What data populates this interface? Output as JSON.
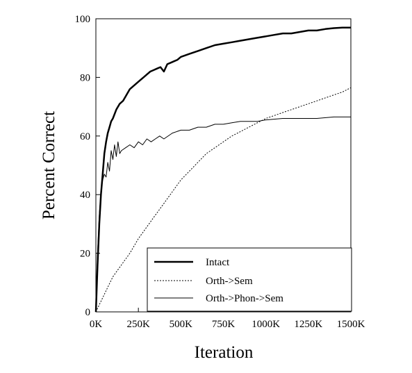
{
  "chart_data": {
    "type": "line",
    "title": "",
    "xlabel": "Iteration",
    "ylabel": "Percent Correct",
    "xlim": [
      0,
      1500000
    ],
    "ylim": [
      0,
      100
    ],
    "x_ticks": [
      {
        "value": 0,
        "label": "0K"
      },
      {
        "value": 250000,
        "label": "250K"
      },
      {
        "value": 500000,
        "label": "500K"
      },
      {
        "value": 750000,
        "label": "750K"
      },
      {
        "value": 1000000,
        "label": "1000K"
      },
      {
        "value": 1250000,
        "label": "1250K"
      },
      {
        "value": 1500000,
        "label": "1500K"
      }
    ],
    "y_ticks": [
      {
        "value": 0,
        "label": "0"
      },
      {
        "value": 20,
        "label": "20"
      },
      {
        "value": 40,
        "label": "40"
      },
      {
        "value": 60,
        "label": "60"
      },
      {
        "value": 80,
        "label": "80"
      },
      {
        "value": 100,
        "label": "100"
      }
    ],
    "grid": false,
    "legend_position": "bottom-right",
    "series": [
      {
        "name": "Intact",
        "style": "thick-solid",
        "color": "#000000",
        "x": [
          0,
          10000,
          20000,
          30000,
          40000,
          50000,
          60000,
          70000,
          80000,
          90000,
          100000,
          120000,
          140000,
          160000,
          180000,
          200000,
          220000,
          240000,
          260000,
          280000,
          300000,
          320000,
          340000,
          360000,
          380000,
          400000,
          420000,
          440000,
          460000,
          480000,
          500000,
          550000,
          600000,
          650000,
          700000,
          750000,
          800000,
          850000,
          900000,
          950000,
          1000000,
          1050000,
          1100000,
          1150000,
          1200000,
          1250000,
          1300000,
          1350000,
          1400000,
          1450000,
          1500000
        ],
        "values": [
          0,
          16,
          30,
          40,
          47,
          54,
          58,
          61,
          63,
          65,
          66,
          69,
          71,
          72,
          74,
          76,
          77,
          78,
          79,
          80,
          81,
          82,
          82.5,
          83,
          83.5,
          82,
          84.5,
          85,
          85.5,
          86,
          87,
          88,
          89,
          90,
          91,
          91.5,
          92,
          92.5,
          93,
          93.5,
          94,
          94.5,
          95,
          95,
          95.5,
          96,
          96,
          96.5,
          96.8,
          97,
          97
        ]
      },
      {
        "name": "Orth->Sem",
        "style": "dotted",
        "color": "#000000",
        "x": [
          0,
          25000,
          50000,
          75000,
          100000,
          125000,
          150000,
          175000,
          200000,
          250000,
          300000,
          350000,
          400000,
          450000,
          500000,
          550000,
          600000,
          650000,
          700000,
          750000,
          800000,
          850000,
          900000,
          950000,
          1000000,
          1050000,
          1100000,
          1150000,
          1200000,
          1250000,
          1300000,
          1350000,
          1400000,
          1450000,
          1500000
        ],
        "values": [
          0,
          3,
          6,
          9,
          12,
          14,
          16,
          18,
          20,
          25,
          29,
          33,
          37,
          41,
          45,
          48,
          51,
          54,
          56,
          58,
          60,
          61.5,
          63,
          64.5,
          66,
          67,
          68,
          69,
          70,
          71,
          72,
          73,
          74,
          75,
          76.5
        ]
      },
      {
        "name": "Orth->Phon->Sem",
        "style": "thin-solid",
        "color": "#000000",
        "x": [
          0,
          10000,
          20000,
          30000,
          40000,
          50000,
          60000,
          70000,
          80000,
          90000,
          100000,
          110000,
          120000,
          130000,
          140000,
          150000,
          175000,
          200000,
          225000,
          250000,
          275000,
          300000,
          325000,
          350000,
          375000,
          400000,
          450000,
          500000,
          550000,
          600000,
          650000,
          700000,
          750000,
          800000,
          850000,
          900000,
          950000,
          1000000,
          1100000,
          1200000,
          1300000,
          1400000,
          1500000
        ],
        "values": [
          0,
          20,
          33,
          41,
          45,
          47,
          46,
          51,
          48,
          55,
          52,
          57,
          53,
          58,
          54,
          55,
          56,
          57,
          56,
          58,
          57,
          59,
          58,
          59,
          60,
          59,
          61,
          62,
          62,
          63,
          63,
          64,
          64,
          64.5,
          65,
          65,
          65,
          65.5,
          66,
          66,
          66,
          66.5,
          66.5
        ]
      }
    ]
  }
}
